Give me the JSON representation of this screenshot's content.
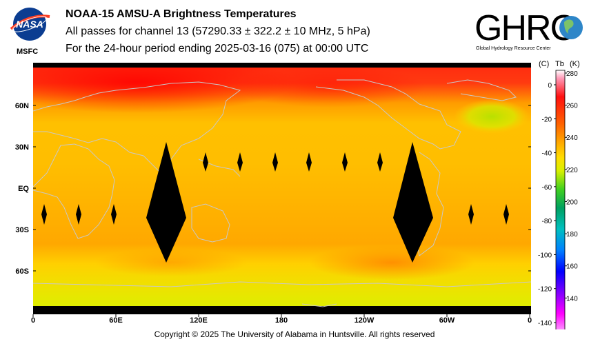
{
  "header": {
    "title": "NOAA-15 AMSU-A Brightness Temperatures",
    "subtitle": "All passes for channel 13 (57290.33 ± 322.2 ± 10 MHz, 5 hPa)",
    "period": "For the 24-hour period ending 2025-03-16 (075) at 00:00 UTC"
  },
  "logos": {
    "nasa_text": "NASA",
    "msfc_text": "MSFC",
    "ghrc_text": "GHRC",
    "ghrc_subtext": "Global Hydrology Resource Center"
  },
  "map": {
    "lat_ticks": [
      "60N",
      "30N",
      "EQ",
      "30S",
      "60S"
    ],
    "lon_ticks": [
      "0",
      "60E",
      "120E",
      "180",
      "120W",
      "60W",
      "0"
    ]
  },
  "colorbar": {
    "unit_c": "(C)",
    "unit_tb": "Tb",
    "unit_k": "(K)",
    "kelvin_ticks": [
      "280",
      "260",
      "240",
      "220",
      "200",
      "180",
      "160",
      "140"
    ],
    "celsius_ticks": [
      "0",
      "-20",
      "-40",
      "-60",
      "-80",
      "-100",
      "-120",
      "-140"
    ],
    "colors": [
      "#ff5aa0",
      "#ff1010",
      "#ff7a00",
      "#ffcc00",
      "#d8f000",
      "#20c020",
      "#00b8b8",
      "#0060ff",
      "#0000ff",
      "#8000ff",
      "#ff00ff",
      "#ffc0ff"
    ]
  },
  "footer": {
    "copyright": "Copyright © 2025 The University of Alabama in Huntsville.  All rights reserved"
  }
}
